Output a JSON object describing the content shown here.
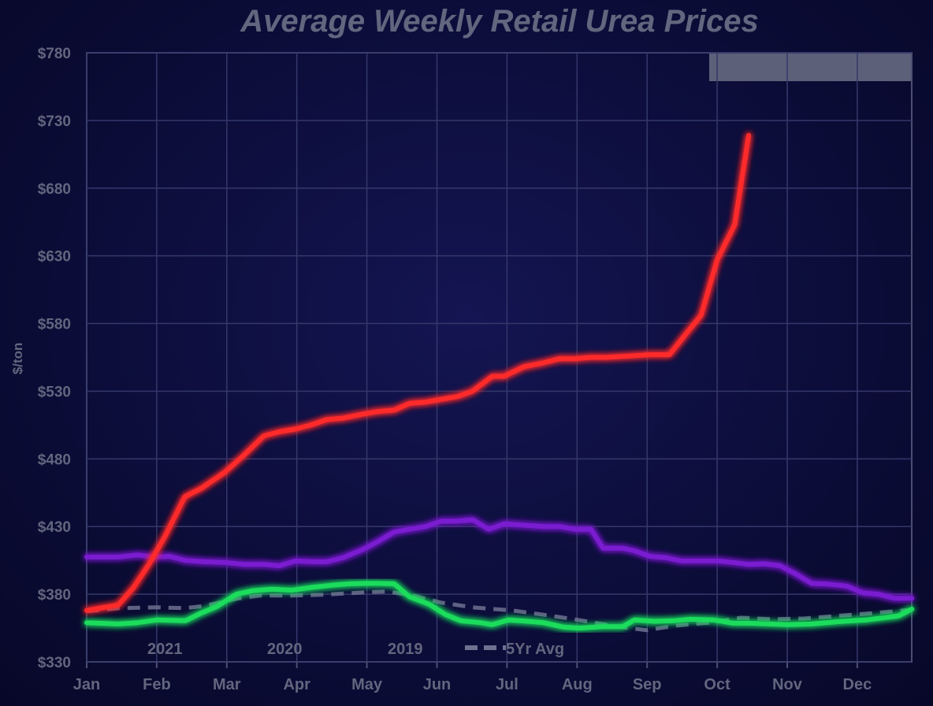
{
  "chart_data": {
    "type": "line",
    "title": "Average Weekly Retail Urea Prices",
    "xlabel": "",
    "ylabel": "$/ton",
    "ylim": [
      330,
      780
    ],
    "xlim": [
      0,
      11.78
    ],
    "x_unit": "month index (0 = Jan)",
    "yticks": [
      "$330",
      "$380",
      "$430",
      "$480",
      "$530",
      "$580",
      "$630",
      "$680",
      "$730",
      "$780"
    ],
    "ytick_values": [
      330,
      380,
      430,
      480,
      530,
      580,
      630,
      680,
      730,
      780
    ],
    "xticks": [
      "Jan",
      "Feb",
      "Mar",
      "Apr",
      "May",
      "Jun",
      "Jul",
      "Aug",
      "Sep",
      "Oct",
      "Nov",
      "Dec"
    ],
    "grid": true,
    "legend_placement": "bottom-left",
    "series": [
      {
        "name": "2021",
        "color": "#ff2a2a",
        "dashed": false,
        "x": [
          0,
          0.45,
          0.67,
          0.9,
          1.12,
          1.4,
          1.63,
          1.97,
          2.25,
          2.53,
          2.75,
          2.98,
          3.2,
          3.43,
          3.65,
          3.94,
          4.16,
          4.39,
          4.61,
          4.84,
          5.06,
          5.29,
          5.51,
          5.79,
          5.96,
          6.24,
          6.52,
          6.75,
          6.97,
          7.2,
          7.42,
          7.76,
          8.04,
          8.32,
          8.55,
          8.77,
          9.0,
          9.25,
          9.45
        ],
        "y": [
          368,
          372,
          385,
          403,
          423,
          452,
          458,
          470,
          483,
          497,
          500,
          502,
          505,
          509,
          510,
          513,
          515,
          516,
          521,
          522,
          524,
          526,
          530,
          541,
          541,
          548,
          551,
          554,
          554,
          555,
          555,
          556,
          557,
          557,
          572,
          586,
          627,
          653,
          719
        ]
      },
      {
        "name": "2020",
        "color": "#1fdc5c",
        "dashed": false,
        "x": [
          0,
          0.45,
          0.73,
          1.01,
          1.41,
          1.63,
          1.86,
          2.14,
          2.36,
          2.64,
          2.93,
          3.21,
          3.49,
          3.77,
          3.99,
          4.16,
          4.39,
          4.61,
          4.89,
          5.12,
          5.34,
          5.62,
          5.79,
          6.02,
          6.3,
          6.52,
          6.81,
          7.03,
          7.37,
          7.65,
          7.82,
          8.1,
          8.38,
          8.61,
          8.95,
          9.23,
          9.45,
          10.01,
          10.35,
          10.8,
          11.14,
          11.59,
          11.78
        ],
        "y": [
          359,
          358,
          359,
          361,
          360.4,
          366,
          371,
          380,
          382.5,
          383.7,
          383,
          385,
          386.6,
          387.7,
          388,
          388,
          387.7,
          378,
          372.6,
          365,
          360.4,
          359,
          357.5,
          361,
          360,
          359,
          355.7,
          355,
          356,
          356,
          361,
          360,
          360.4,
          361.5,
          361,
          358.6,
          358.6,
          357.5,
          358,
          360,
          361,
          364,
          369
        ]
      },
      {
        "name": "2019",
        "color": "#7a1fd0",
        "dashed": false,
        "x": [
          0,
          0.45,
          0.73,
          0.96,
          1.18,
          1.41,
          1.69,
          1.97,
          2.25,
          2.53,
          2.75,
          2.98,
          3.21,
          3.43,
          3.66,
          3.94,
          4.16,
          4.39,
          4.61,
          4.84,
          5.06,
          5.29,
          5.51,
          5.74,
          5.96,
          6.24,
          6.52,
          6.75,
          6.97,
          7.2,
          7.37,
          7.65,
          7.82,
          8.04,
          8.27,
          8.49,
          8.77,
          9.0,
          9.22,
          9.45,
          9.67,
          9.9,
          10.12,
          10.35,
          10.57,
          10.85,
          11.08,
          11.3,
          11.53,
          11.78
        ],
        "y": [
          407.5,
          407.5,
          409,
          407.5,
          408,
          405,
          404,
          403.5,
          402,
          402,
          401,
          404.6,
          404,
          404,
          407,
          413,
          419,
          426,
          428,
          430,
          434,
          434,
          435,
          428,
          432,
          431,
          430,
          430,
          428,
          428,
          414,
          414,
          412,
          408,
          407,
          404.6,
          404.6,
          404.6,
          403.5,
          402,
          402.5,
          401,
          395,
          388,
          387.5,
          386,
          381,
          380,
          377,
          377
        ]
      },
      {
        "name": "5Yr Avg",
        "color": "#6e7190",
        "dashed": true,
        "x": [
          0,
          0.45,
          1.01,
          1.41,
          1.69,
          2.14,
          2.47,
          2.93,
          3.37,
          3.94,
          4.27,
          4.61,
          5.06,
          5.51,
          6.07,
          6.64,
          7.09,
          7.54,
          7.99,
          8.44,
          8.89,
          9.34,
          9.79,
          10.24,
          10.69,
          11.14,
          11.78
        ],
        "y": [
          367.4,
          369.7,
          370.3,
          369.7,
          371.4,
          376.7,
          379,
          379,
          379.6,
          381.3,
          382,
          379.6,
          373.8,
          370.3,
          368,
          364,
          360.4,
          356.3,
          353.4,
          357,
          359,
          362.6,
          361.5,
          362,
          363.8,
          365.6,
          368.5
        ]
      }
    ]
  }
}
